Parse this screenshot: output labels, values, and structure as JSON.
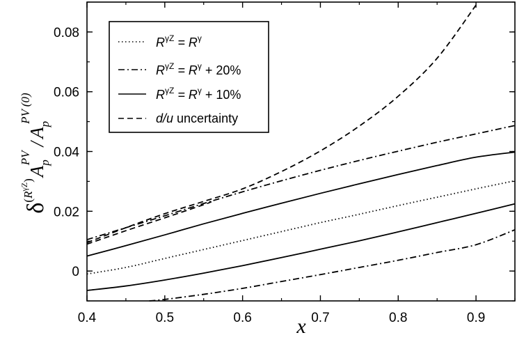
{
  "chart_data": {
    "type": "line",
    "title": "",
    "xlabel": "x",
    "ylabel": "δ^(R^γZ) A_p^PV / A_p^PV (0)",
    "ylabel_parts": {
      "delta": "δ",
      "R": "R",
      "gz": "γZ",
      "A": "A",
      "p": "p",
      "pv": "PV",
      "slash": "/",
      "pv0": "PV (0)"
    },
    "xlim": [
      0.4,
      0.95
    ],
    "ylim": [
      -0.01,
      0.09
    ],
    "xticks": [
      0.4,
      0.5,
      0.6,
      0.7,
      0.8,
      0.9
    ],
    "xtick_labels": [
      "0.4",
      "0.5",
      "0.6",
      "0.7",
      "0.8",
      "0.9"
    ],
    "yticks": [
      0,
      0.02,
      0.04,
      0.06,
      0.08
    ],
    "ytick_labels": [
      "0",
      "0.02",
      "0.04",
      "0.06",
      "0.08"
    ],
    "grid": false,
    "legend_position": "top-left",
    "legend": [
      {
        "style": "dotted",
        "pre": "R",
        "sup1": "γZ",
        "mid": " = R",
        "sup2": "γ",
        "post": ""
      },
      {
        "style": "dashdot",
        "pre": "R",
        "sup1": "γZ",
        "mid": " = R",
        "sup2": "γ",
        "post": " + 20%"
      },
      {
        "style": "solid",
        "pre": "R",
        "sup1": "γZ",
        "mid": " = R",
        "sup2": "γ",
        "post": " + 10%"
      },
      {
        "style": "dashed",
        "pre": "",
        "sup1": "",
        "mid": "d/u",
        "sup2": "",
        "post": " uncertainty"
      }
    ],
    "series": [
      {
        "name": "RγZ = Rγ",
        "style": "dotted",
        "x": [
          0.4,
          0.45,
          0.5,
          0.55,
          0.6,
          0.65,
          0.7,
          0.75,
          0.8,
          0.85,
          0.9,
          0.95
        ],
        "y": [
          -0.001,
          0.0012,
          0.0042,
          0.0072,
          0.0102,
          0.0132,
          0.0162,
          0.019,
          0.0219,
          0.0247,
          0.0275,
          0.0302
        ]
      },
      {
        "name": "RγZ = Rγ + 20% (upper)",
        "style": "dashdot",
        "x": [
          0.4,
          0.45,
          0.5,
          0.55,
          0.6,
          0.65,
          0.7,
          0.75,
          0.8,
          0.85,
          0.9,
          0.95
        ],
        "y": [
          0.0105,
          0.0145,
          0.0185,
          0.0226,
          0.0265,
          0.0302,
          0.0337,
          0.037,
          0.0401,
          0.0431,
          0.0459,
          0.0487
        ]
      },
      {
        "name": "RγZ = Rγ + 20% (lower)",
        "style": "dashdot",
        "x": [
          0.48,
          0.5,
          0.55,
          0.6,
          0.65,
          0.7,
          0.75,
          0.8,
          0.85,
          0.9,
          0.95
        ],
        "y": [
          -0.01,
          -0.0095,
          -0.0078,
          -0.0058,
          -0.0035,
          -0.0012,
          0.0012,
          0.0036,
          0.0062,
          0.0088,
          0.0138
        ]
      },
      {
        "name": "RγZ = Rγ + 10% (upper)",
        "style": "solid",
        "x": [
          0.4,
          0.45,
          0.5,
          0.55,
          0.6,
          0.65,
          0.7,
          0.75,
          0.8,
          0.85,
          0.9,
          0.95
        ],
        "y": [
          0.005,
          0.0085,
          0.0121,
          0.0158,
          0.0193,
          0.0227,
          0.026,
          0.0292,
          0.0323,
          0.0353,
          0.0381,
          0.0398
        ]
      },
      {
        "name": "RγZ = Rγ + 10% (lower)",
        "style": "solid",
        "x": [
          0.4,
          0.45,
          0.5,
          0.55,
          0.6,
          0.65,
          0.7,
          0.75,
          0.8,
          0.85,
          0.9,
          0.95
        ],
        "y": [
          -0.0065,
          -0.005,
          -0.003,
          -0.0007,
          0.0018,
          0.0045,
          0.0073,
          0.0101,
          0.0131,
          0.0162,
          0.0193,
          0.0225
        ]
      },
      {
        "name": "d/u uncertainty (upper)",
        "style": "dashed",
        "x": [
          0.4,
          0.45,
          0.5,
          0.55,
          0.6,
          0.65,
          0.7,
          0.75,
          0.8,
          0.85,
          0.9
        ],
        "y": [
          0.0095,
          0.0145,
          0.0192,
          0.0233,
          0.0275,
          0.0333,
          0.0402,
          0.0485,
          0.0585,
          0.0712,
          0.089
        ]
      },
      {
        "name": "d/u uncertainty (lower)",
        "style": "dashed",
        "x": [
          0.4,
          0.45,
          0.5,
          0.55,
          0.56
        ],
        "y": [
          0.009,
          0.0135,
          0.0178,
          0.0222,
          0.0232
        ]
      }
    ]
  }
}
